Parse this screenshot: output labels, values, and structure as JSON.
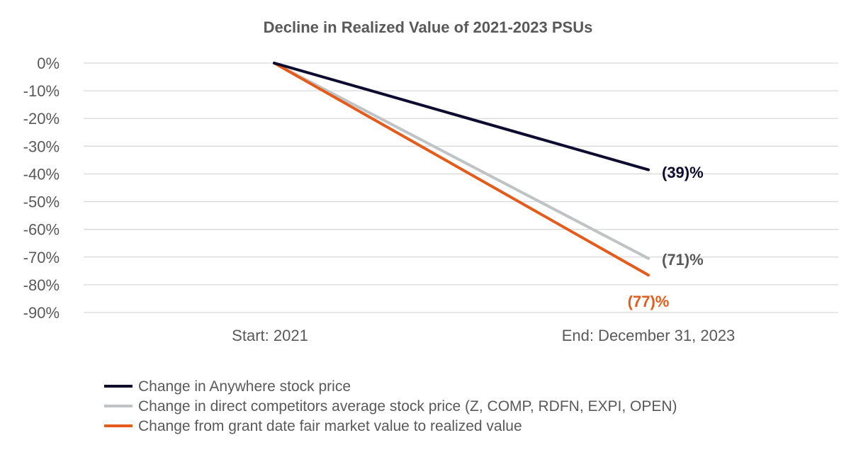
{
  "chart_data": {
    "type": "line",
    "title": "Decline in Realized Value of 2021-2023 PSUs",
    "xlabel": "",
    "ylabel": "",
    "categories": [
      "Start: 2021",
      "End: December 31, 2023"
    ],
    "y_ticks": [
      {
        "value": 0,
        "label": "0%"
      },
      {
        "value": -10,
        "label": "-10%"
      },
      {
        "value": -20,
        "label": "-20%"
      },
      {
        "value": -30,
        "label": "-30%"
      },
      {
        "value": -40,
        "label": "-40%"
      },
      {
        "value": -50,
        "label": "-50%"
      },
      {
        "value": -60,
        "label": "-60%"
      },
      {
        "value": -70,
        "label": "-70%"
      },
      {
        "value": -80,
        "label": "-80%"
      },
      {
        "value": -90,
        "label": "-90%"
      }
    ],
    "ylim": [
      -90,
      0
    ],
    "grid": true,
    "legend_position": "bottom",
    "series": [
      {
        "name": "Change in Anywhere stock price",
        "values": [
          0,
          -38.5
        ],
        "color": "#0d0b2e",
        "end_label": "(39)%",
        "label_color": "#0d0b2e"
      },
      {
        "name": "Change in direct competitors average stock price (Z, COMP, RDFN, EXPI, OPEN)",
        "values": [
          0,
          -70.5
        ],
        "color": "#bfc3c5",
        "end_label": "(71)%",
        "label_color": "#595959"
      },
      {
        "name": "Change from grant date fair market value to realized value",
        "values": [
          0,
          -76.5
        ],
        "color": "#e35c1b",
        "end_label": "(77)%",
        "label_color": "#e35c1b"
      }
    ]
  }
}
